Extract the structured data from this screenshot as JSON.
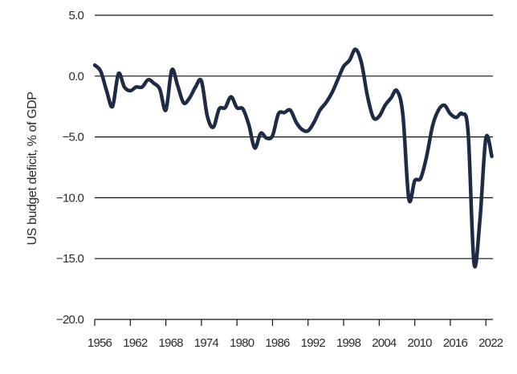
{
  "chart_data": {
    "type": "line",
    "title": "",
    "xlabel": "",
    "ylabel": "US budget deficit, % of GDP",
    "xlim": [
      1956,
      2024
    ],
    "ylim": [
      -20,
      5
    ],
    "grid": "horizontal",
    "line_color": "#1f2a44",
    "x_ticks": [
      "1956",
      "1962",
      "1968",
      "1974",
      "1980",
      "1986",
      "1992",
      "1998",
      "2004",
      "2010",
      "2016",
      "2022"
    ],
    "y_ticks": [
      "5.0",
      "0.0",
      "−5.0",
      "−10.0",
      "−15.0",
      "−20.0"
    ],
    "series": [
      {
        "x": [
          1956,
          1957,
          1958,
          1959,
          1960,
          1961,
          1962,
          1963,
          1964,
          1965,
          1966,
          1967,
          1968,
          1969,
          1970,
          1971,
          1972,
          1973,
          1974,
          1975,
          1976,
          1977,
          1978,
          1979,
          1980,
          1981,
          1982,
          1983,
          1984,
          1985,
          1986,
          1987,
          1988,
          1989,
          1990,
          1991,
          1992,
          1993,
          1994,
          1995,
          1996,
          1997,
          1998,
          1999,
          2000,
          2001,
          2002,
          2003,
          2004,
          2005,
          2006,
          2007,
          2008,
          2009,
          2010,
          2011,
          2012,
          2013,
          2014,
          2015,
          2016,
          2017,
          2018,
          2019,
          2020,
          2021,
          2022,
          2023
        ],
        "values": [
          0.9,
          0.4,
          -1.2,
          -2.5,
          0.2,
          -0.9,
          -1.2,
          -0.9,
          -0.9,
          -0.3,
          -0.6,
          -1.1,
          -2.8,
          0.5,
          -0.8,
          -2.2,
          -1.8,
          -0.9,
          -0.4,
          -3.3,
          -4.2,
          -2.7,
          -2.6,
          -1.7,
          -2.6,
          -2.7,
          -4.0,
          -5.9,
          -4.7,
          -5.1,
          -4.9,
          -3.1,
          -3.0,
          -2.8,
          -3.8,
          -4.4,
          -4.5,
          -3.8,
          -2.8,
          -2.2,
          -1.4,
          -0.3,
          0.8,
          1.3,
          2.2,
          1.1,
          -1.6,
          -3.4,
          -3.3,
          -2.4,
          -1.8,
          -1.2,
          -3.2,
          -10.1,
          -8.6,
          -8.4,
          -6.6,
          -4.1,
          -2.8,
          -2.4,
          -3.1,
          -3.4,
          -3.1,
          -4.6,
          -15.4,
          -11.8,
          -5.1,
          -6.6
        ]
      }
    ]
  }
}
